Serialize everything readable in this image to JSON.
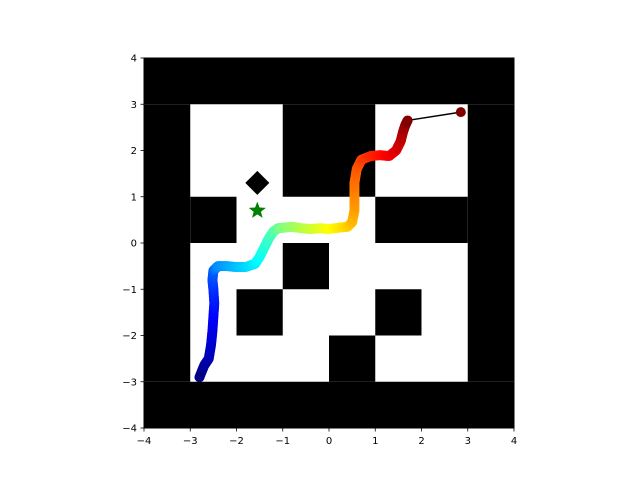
{
  "chart_data": {
    "type": "scatter",
    "title": "",
    "xlabel": "",
    "ylabel": "",
    "xlim": [
      -4,
      4
    ],
    "ylim": [
      -4,
      4
    ],
    "grid": false,
    "legend": "none",
    "x_ticks": [
      -4,
      -3,
      -2,
      -1,
      0,
      1,
      2,
      3,
      4
    ],
    "y_ticks": [
      -4,
      -3,
      -2,
      -1,
      0,
      1,
      2,
      3,
      4
    ],
    "x_tick_labels": [
      "−4",
      "−3",
      "−2",
      "−1",
      "0",
      "1",
      "2",
      "3",
      "4"
    ],
    "y_tick_labels": [
      "−4",
      "−3",
      "−2",
      "−1",
      "0",
      "1",
      "2",
      "3",
      "4"
    ],
    "maze_walls": [
      [
        -4,
        3,
        8,
        1
      ],
      [
        -4,
        -4,
        8,
        1
      ],
      [
        -4,
        -3,
        1,
        6
      ],
      [
        3,
        -3,
        1,
        6
      ],
      [
        -1,
        1,
        2,
        2
      ],
      [
        -3,
        0,
        1,
        1
      ],
      [
        1,
        0,
        2,
        1
      ],
      [
        -1,
        -1,
        1,
        1
      ],
      [
        -2,
        -2,
        1,
        1
      ],
      [
        1,
        -2,
        1,
        1
      ],
      [
        0,
        -3,
        1,
        1
      ]
    ],
    "maze_wall_color": "#000000",
    "trajectory": {
      "colormap": "jet",
      "x": [
        -2.8,
        -2.7,
        -2.6,
        -2.55,
        -2.52,
        -2.5,
        -2.48,
        -2.5,
        -2.52,
        -2.5,
        -2.45,
        -2.4,
        -2.2,
        -2.0,
        -1.8,
        -1.6,
        -1.5,
        -1.4,
        -1.3,
        -1.2,
        -1.1,
        -1.0,
        -0.8,
        -0.6,
        -0.4,
        -0.2,
        0.0,
        0.2,
        0.4,
        0.5,
        0.55,
        0.55,
        0.55,
        0.6,
        0.7,
        0.9,
        1.1,
        1.3,
        1.45,
        1.55,
        1.6,
        1.65,
        1.7
      ],
      "y": [
        -2.9,
        -2.65,
        -2.5,
        -2.2,
        -1.9,
        -1.6,
        -1.3,
        -1.0,
        -0.8,
        -0.6,
        -0.55,
        -0.5,
        -0.5,
        -0.52,
        -0.52,
        -0.45,
        -0.3,
        -0.1,
        0.1,
        0.25,
        0.32,
        0.33,
        0.35,
        0.32,
        0.3,
        0.32,
        0.3,
        0.33,
        0.35,
        0.45,
        0.7,
        1.0,
        1.3,
        1.6,
        1.8,
        1.88,
        1.9,
        1.88,
        2.0,
        2.2,
        2.4,
        2.55,
        2.65
      ],
      "final_segment": {
        "x": [
          1.7,
          2.85
        ],
        "y": [
          2.65,
          2.83
        ]
      }
    },
    "markers": [
      {
        "name": "diamond",
        "x": -1.55,
        "y": 1.3,
        "color": "#000000"
      },
      {
        "name": "star",
        "x": -1.55,
        "y": 0.7,
        "color": "#008000"
      }
    ]
  }
}
